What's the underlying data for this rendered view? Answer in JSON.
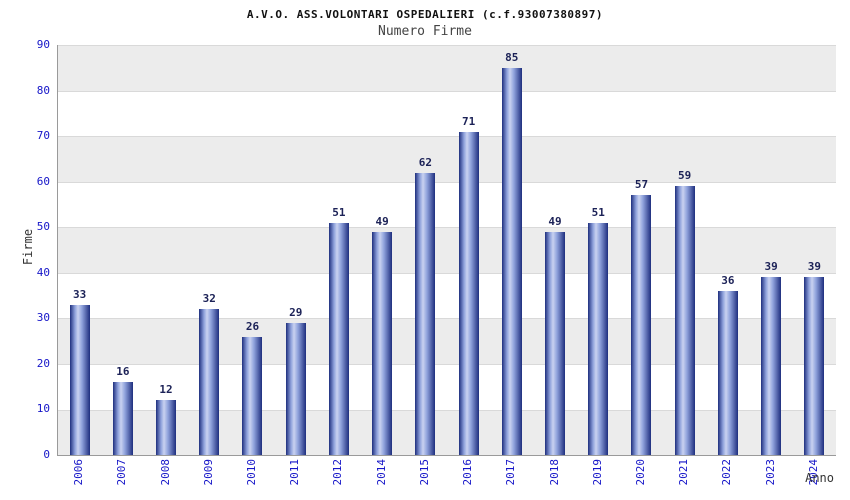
{
  "chart_data": {
    "type": "bar",
    "title": "A.V.O. ASS.VOLONTARI OSPEDALIERI (c.f.93007380897)",
    "subtitle": "Numero Firme",
    "xlabel": "Anno",
    "ylabel": "Firme",
    "categories": [
      "2006",
      "2007",
      "2008",
      "2009",
      "2010",
      "2011",
      "2012",
      "2014",
      "2015",
      "2016",
      "2017",
      "2018",
      "2019",
      "2020",
      "2021",
      "2022",
      "2023",
      "2024"
    ],
    "values": [
      33,
      16,
      12,
      32,
      26,
      29,
      51,
      49,
      62,
      71,
      85,
      49,
      51,
      57,
      59,
      36,
      39,
      39
    ],
    "ylim": [
      0,
      90
    ],
    "ytick_step": 10,
    "grid": "horizontal gridlines with alternating gray/white bands",
    "legend": "none",
    "colors": {
      "bar_edge": "#1e2e7e",
      "bar_mid": "#8fa2dc",
      "bar_highlight": "#c9d2f0",
      "tick_label": "#1515c8",
      "value_label": "#1c2257",
      "band_gray": "#ececec",
      "band_white": "#ffffff",
      "gridline": "#d9d9d9",
      "axis": "#9a9a9a",
      "title": "#111111",
      "subtitle": "#444444"
    }
  }
}
